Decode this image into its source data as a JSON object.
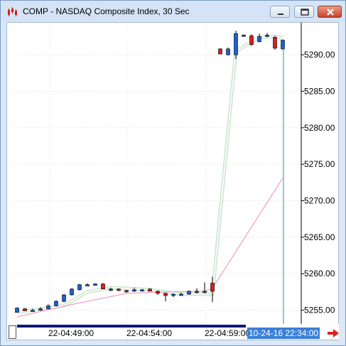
{
  "window": {
    "title": "COMP - NASDAQ Composite Index, 30 Sec",
    "buttons": [
      "minimize",
      "restore",
      "close"
    ]
  },
  "icons": {
    "app": "candlestick-app-icon",
    "minimize": "minimize-icon",
    "restore": "restore-icon",
    "close": "close-icon",
    "scroll": "right-arrow-icon"
  },
  "colors": {
    "up_candle": "#1f5fd6",
    "down_candle": "#d42020",
    "ma_fast": "#cfe8d2",
    "ma_slow": "#f08cb4",
    "cursor_line": "#2a8fa0",
    "cursor_label_bg": "#3a7fd8"
  },
  "time_axis": {
    "labels": [
      "22-04:49:00",
      "22-04:54:00",
      "22-04:59:00"
    ],
    "cursor_label": "10-24-16 22:34:00"
  },
  "chart_data": {
    "type": "candlestick",
    "title": "",
    "ylim": [
      5253.5,
      5294
    ],
    "y_ticks": [
      "5290.00",
      "5285.00",
      "5280.00",
      "5275.00",
      "5270.00",
      "5265.00",
      "5260.00",
      "5255.00"
    ],
    "grid": true,
    "y_axis_side": "right",
    "candles": [
      {
        "o": 5254.7,
        "h": 5255.4,
        "l": 5254.7,
        "c": 5255.3,
        "dir": "up"
      },
      {
        "o": 5255.2,
        "h": 5255.3,
        "l": 5254.9,
        "c": 5254.9,
        "dir": "down"
      },
      {
        "o": 5254.9,
        "h": 5255.2,
        "l": 5254.8,
        "c": 5255.0,
        "dir": "up"
      },
      {
        "o": 5255.0,
        "h": 5255.4,
        "l": 5254.9,
        "c": 5255.2,
        "dir": "up"
      },
      {
        "o": 5255.2,
        "h": 5255.8,
        "l": 5255.1,
        "c": 5255.6,
        "dir": "up"
      },
      {
        "o": 5255.6,
        "h": 5256.4,
        "l": 5255.5,
        "c": 5256.2,
        "dir": "up"
      },
      {
        "o": 5256.2,
        "h": 5257.2,
        "l": 5256.1,
        "c": 5257.1,
        "dir": "up"
      },
      {
        "o": 5257.1,
        "h": 5258.0,
        "l": 5257.0,
        "c": 5257.9,
        "dir": "up"
      },
      {
        "o": 5257.8,
        "h": 5258.6,
        "l": 5257.7,
        "c": 5258.5,
        "dir": "up"
      },
      {
        "o": 5258.5,
        "h": 5258.7,
        "l": 5258.3,
        "c": 5258.5,
        "dir": "up"
      },
      {
        "o": 5258.5,
        "h": 5258.7,
        "l": 5258.4,
        "c": 5258.6,
        "dir": "up"
      },
      {
        "o": 5258.6,
        "h": 5258.7,
        "l": 5257.9,
        "c": 5257.9,
        "dir": "down"
      },
      {
        "o": 5257.9,
        "h": 5258.1,
        "l": 5257.6,
        "c": 5257.9,
        "dir": "up"
      },
      {
        "o": 5257.9,
        "h": 5258.0,
        "l": 5257.6,
        "c": 5257.7,
        "dir": "down"
      },
      {
        "o": 5257.7,
        "h": 5257.8,
        "l": 5257.4,
        "c": 5257.5,
        "dir": "down"
      },
      {
        "o": 5257.6,
        "h": 5258.1,
        "l": 5257.5,
        "c": 5257.8,
        "dir": "up"
      },
      {
        "o": 5257.8,
        "h": 5257.9,
        "l": 5257.6,
        "c": 5257.8,
        "dir": "up"
      },
      {
        "o": 5257.9,
        "h": 5258.0,
        "l": 5257.6,
        "c": 5257.6,
        "dir": "down"
      },
      {
        "o": 5257.6,
        "h": 5257.7,
        "l": 5257.1,
        "c": 5257.3,
        "dir": "down"
      },
      {
        "o": 5257.3,
        "h": 5257.4,
        "l": 5256.2,
        "c": 5257.0,
        "dir": "down"
      },
      {
        "o": 5257.0,
        "h": 5257.3,
        "l": 5256.8,
        "c": 5257.2,
        "dir": "up"
      },
      {
        "o": 5257.2,
        "h": 5257.4,
        "l": 5257.0,
        "c": 5257.2,
        "dir": "up"
      },
      {
        "o": 5257.2,
        "h": 5257.7,
        "l": 5257.1,
        "c": 5257.6,
        "dir": "up"
      },
      {
        "o": 5257.6,
        "h": 5258.0,
        "l": 5257.3,
        "c": 5257.5,
        "dir": "down"
      },
      {
        "o": 5257.5,
        "h": 5258.8,
        "l": 5257.3,
        "c": 5257.6,
        "dir": "up"
      },
      {
        "o": 5258.7,
        "h": 5259.6,
        "l": 5256.1,
        "c": 5257.6,
        "dir": "down"
      },
      {
        "o": 5290.8,
        "h": 5290.9,
        "l": 5290.1,
        "c": 5290.1,
        "dir": "down"
      },
      {
        "o": 5290.0,
        "h": 5291.0,
        "l": 5289.9,
        "c": 5290.8,
        "dir": "up"
      },
      {
        "o": 5290.0,
        "h": 5293.3,
        "l": 5289.4,
        "c": 5292.9,
        "dir": "up"
      },
      {
        "o": 5292.7,
        "h": 5292.8,
        "l": 5292.5,
        "c": 5292.7,
        "dir": "up"
      },
      {
        "o": 5292.6,
        "h": 5292.8,
        "l": 5291.2,
        "c": 5291.4,
        "dir": "down"
      },
      {
        "o": 5291.8,
        "h": 5292.9,
        "l": 5291.7,
        "c": 5292.5,
        "dir": "up"
      },
      {
        "o": 5292.6,
        "h": 5293.0,
        "l": 5292.4,
        "c": 5292.7,
        "dir": "up"
      },
      {
        "o": 5292.4,
        "h": 5292.6,
        "l": 5290.7,
        "c": 5290.9,
        "dir": "down"
      },
      {
        "o": 5290.8,
        "h": 5292.1,
        "l": 5290.7,
        "c": 5292.0,
        "dir": "up"
      }
    ],
    "ma_fast": [
      [
        0,
        5254.7
      ],
      [
        6,
        5255.6
      ],
      [
        9,
        5257.5
      ],
      [
        12,
        5258.1
      ],
      [
        17,
        5257.8
      ],
      [
        21,
        5257.2
      ],
      [
        25,
        5257.2
      ],
      [
        28,
        5290.5
      ],
      [
        31,
        5292.4
      ],
      [
        33,
        5292.5
      ],
      [
        34,
        5292.3
      ]
    ],
    "ma_slow": [
      [
        0,
        5254.1
      ],
      [
        8,
        5256.0
      ],
      [
        14,
        5257.3
      ],
      [
        19,
        5257.5
      ],
      [
        24,
        5257.6
      ],
      [
        25,
        5258.0
      ],
      [
        34,
        5273.1
      ]
    ]
  }
}
